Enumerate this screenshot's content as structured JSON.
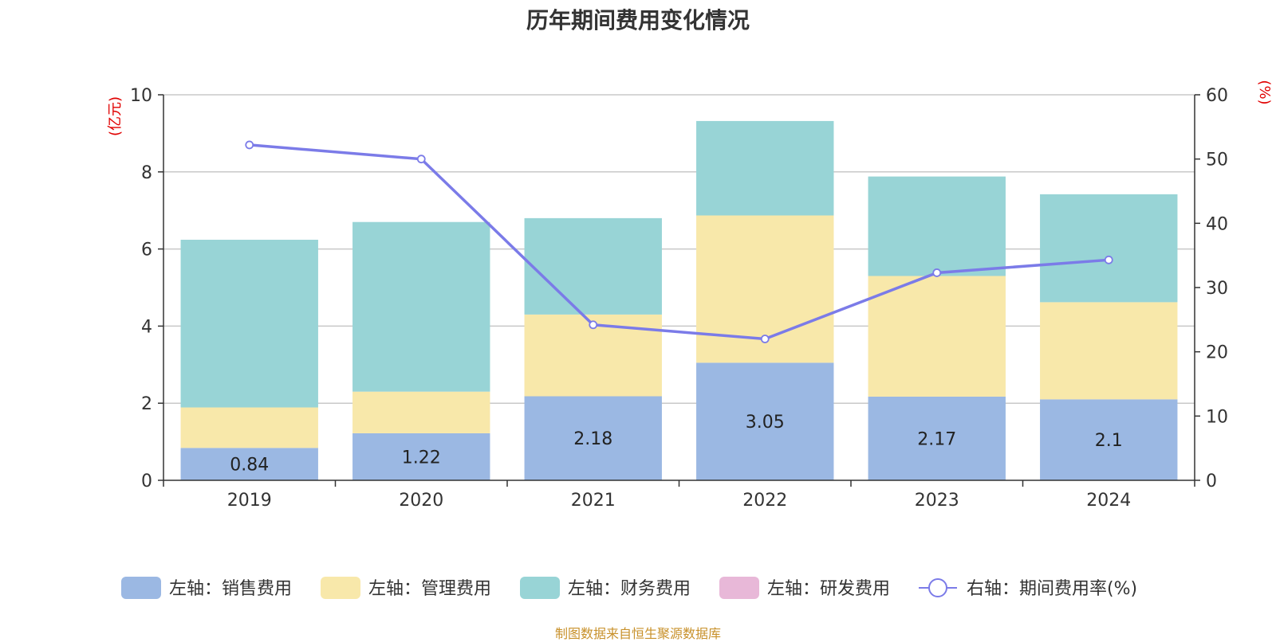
{
  "title": "历年期间费用变化情况",
  "source": "制图数据来自恒生聚源数据库",
  "chart_data": {
    "type": "bar",
    "stacked": true,
    "title": "历年期间费用变化情况",
    "categories": [
      "2019",
      "2020",
      "2021",
      "2022",
      "2023",
      "2024"
    ],
    "left_axis": {
      "unit": "(亿元)",
      "ylim": [
        0,
        10
      ],
      "ticks": [
        0,
        2,
        4,
        6,
        8,
        10
      ]
    },
    "right_axis": {
      "unit": "(%)",
      "ylim": [
        0,
        60
      ],
      "ticks": [
        0,
        10,
        20,
        30,
        40,
        50,
        60
      ]
    },
    "grid": true,
    "legend_position": "bottom",
    "series": [
      {
        "name": "左轴：销售费用",
        "axis": "left",
        "color": "#9bb8e3",
        "values": [
          0.84,
          1.22,
          2.18,
          3.05,
          2.17,
          2.1
        ],
        "labels": [
          "0.84",
          "1.22",
          "2.18",
          "3.05",
          "2.17",
          "2.1"
        ]
      },
      {
        "name": "左轴：管理费用",
        "axis": "left",
        "color": "#f8e8aa",
        "values": [
          1.05,
          1.08,
          2.12,
          3.82,
          3.13,
          2.52
        ]
      },
      {
        "name": "左轴：财务费用",
        "axis": "left",
        "color": "#98d4d6",
        "values": [
          4.35,
          4.4,
          2.5,
          2.45,
          2.58,
          2.8
        ]
      },
      {
        "name": "左轴：研发费用",
        "axis": "left",
        "color": "#e8b8d8",
        "values": [
          0,
          0,
          0,
          0,
          0,
          0
        ]
      },
      {
        "name": "右轴：期间费用率(%)",
        "axis": "right",
        "type": "line",
        "color": "#7b7be8",
        "values": [
          52.2,
          50.0,
          24.2,
          22.0,
          32.3,
          34.3
        ]
      }
    ]
  }
}
